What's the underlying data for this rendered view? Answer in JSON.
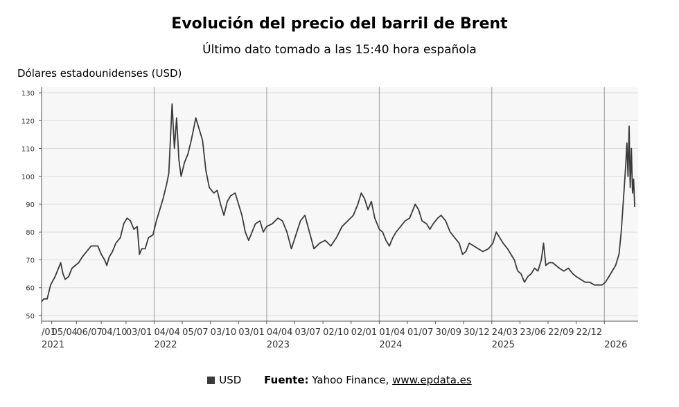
{
  "chart_data": {
    "type": "line",
    "title": "Evolución del precio del barril de Brent",
    "subtitle": "Último dato tomado a las 15:40 hora española",
    "ylabel": "Dólares estadounidenses (USD)",
    "ylim": [
      48,
      132
    ],
    "yticks": [
      50,
      60,
      70,
      80,
      90,
      100,
      110,
      120,
      130
    ],
    "xlim": [
      2021.0,
      2026.3
    ],
    "year_boundaries": [
      2022,
      2023,
      2024,
      2025,
      2026
    ],
    "grid": true,
    "legend_position": "bottom",
    "x_tick_labels": [
      {
        "x": 2021.0,
        "label": "/01",
        "year": "2021"
      },
      {
        "x": 2021.09,
        "label": "05/04",
        "year": ""
      },
      {
        "x": 2021.31,
        "label": "06/07",
        "year": ""
      },
      {
        "x": 2021.53,
        "label": "04/10",
        "year": ""
      },
      {
        "x": 2021.75,
        "label": "03/01",
        "year": ""
      },
      {
        "x": 2022.0,
        "label": "04/04",
        "year": "2022"
      },
      {
        "x": 2022.25,
        "label": "05/07",
        "year": ""
      },
      {
        "x": 2022.5,
        "label": "03/10",
        "year": ""
      },
      {
        "x": 2022.75,
        "label": "03/01",
        "year": ""
      },
      {
        "x": 2023.0,
        "label": "04/04",
        "year": "2023"
      },
      {
        "x": 2023.25,
        "label": "03/07",
        "year": ""
      },
      {
        "x": 2023.5,
        "label": "02/10",
        "year": ""
      },
      {
        "x": 2023.75,
        "label": "02/01",
        "year": ""
      },
      {
        "x": 2024.0,
        "label": "01/04",
        "year": "2024"
      },
      {
        "x": 2024.25,
        "label": "01/07",
        "year": ""
      },
      {
        "x": 2024.5,
        "label": "30/09",
        "year": ""
      },
      {
        "x": 2024.75,
        "label": "30/12",
        "year": ""
      },
      {
        "x": 2025.0,
        "label": "24/03",
        "year": "2025"
      },
      {
        "x": 2025.25,
        "label": "23/06",
        "year": ""
      },
      {
        "x": 2025.5,
        "label": "22/09",
        "year": ""
      },
      {
        "x": 2025.75,
        "label": "22/12",
        "year": ""
      },
      {
        "x": 2026.0,
        "label": "",
        "year": "2026"
      }
    ],
    "series": [
      {
        "name": "USD",
        "color": "#3a3a3a",
        "points": [
          [
            2021.0,
            55
          ],
          [
            2021.02,
            56
          ],
          [
            2021.05,
            56
          ],
          [
            2021.08,
            61
          ],
          [
            2021.12,
            64
          ],
          [
            2021.15,
            67
          ],
          [
            2021.17,
            69
          ],
          [
            2021.19,
            65
          ],
          [
            2021.21,
            63
          ],
          [
            2021.24,
            64
          ],
          [
            2021.27,
            67
          ],
          [
            2021.3,
            68
          ],
          [
            2021.33,
            69
          ],
          [
            2021.36,
            71
          ],
          [
            2021.4,
            73
          ],
          [
            2021.44,
            75
          ],
          [
            2021.48,
            75
          ],
          [
            2021.5,
            75
          ],
          [
            2021.53,
            72
          ],
          [
            2021.56,
            70
          ],
          [
            2021.58,
            68
          ],
          [
            2021.6,
            71
          ],
          [
            2021.63,
            73
          ],
          [
            2021.66,
            76
          ],
          [
            2021.7,
            78
          ],
          [
            2021.73,
            83
          ],
          [
            2021.76,
            85
          ],
          [
            2021.79,
            84
          ],
          [
            2021.82,
            81
          ],
          [
            2021.85,
            82
          ],
          [
            2021.87,
            72
          ],
          [
            2021.89,
            74
          ],
          [
            2021.92,
            74
          ],
          [
            2021.95,
            78
          ],
          [
            2021.99,
            79
          ],
          [
            2022.02,
            84
          ],
          [
            2022.05,
            88
          ],
          [
            2022.08,
            92
          ],
          [
            2022.11,
            97
          ],
          [
            2022.13,
            101
          ],
          [
            2022.16,
            126
          ],
          [
            2022.18,
            110
          ],
          [
            2022.2,
            121
          ],
          [
            2022.22,
            106
          ],
          [
            2022.24,
            100
          ],
          [
            2022.27,
            105
          ],
          [
            2022.3,
            108
          ],
          [
            2022.33,
            113
          ],
          [
            2022.37,
            121
          ],
          [
            2022.4,
            117
          ],
          [
            2022.43,
            113
          ],
          [
            2022.46,
            102
          ],
          [
            2022.49,
            96
          ],
          [
            2022.53,
            94
          ],
          [
            2022.56,
            95
          ],
          [
            2022.59,
            90
          ],
          [
            2022.62,
            86
          ],
          [
            2022.65,
            91
          ],
          [
            2022.68,
            93
          ],
          [
            2022.72,
            94
          ],
          [
            2022.75,
            90
          ],
          [
            2022.78,
            86
          ],
          [
            2022.81,
            80
          ],
          [
            2022.84,
            77
          ],
          [
            2022.87,
            80
          ],
          [
            2022.9,
            83
          ],
          [
            2022.94,
            84
          ],
          [
            2022.97,
            80
          ],
          [
            2023.0,
            82
          ],
          [
            2023.05,
            83
          ],
          [
            2023.1,
            85
          ],
          [
            2023.14,
            84
          ],
          [
            2023.18,
            80
          ],
          [
            2023.22,
            74
          ],
          [
            2023.26,
            79
          ],
          [
            2023.3,
            84
          ],
          [
            2023.34,
            86
          ],
          [
            2023.38,
            80
          ],
          [
            2023.42,
            74
          ],
          [
            2023.47,
            76
          ],
          [
            2023.52,
            77
          ],
          [
            2023.57,
            75
          ],
          [
            2023.62,
            78
          ],
          [
            2023.67,
            82
          ],
          [
            2023.72,
            84
          ],
          [
            2023.77,
            86
          ],
          [
            2023.81,
            90
          ],
          [
            2023.84,
            94
          ],
          [
            2023.87,
            92
          ],
          [
            2023.9,
            88
          ],
          [
            2023.93,
            91
          ],
          [
            2023.96,
            85
          ],
          [
            2024.0,
            81
          ],
          [
            2024.03,
            80
          ],
          [
            2024.06,
            77
          ],
          [
            2024.09,
            75
          ],
          [
            2024.12,
            78
          ],
          [
            2024.15,
            80
          ],
          [
            2024.19,
            82
          ],
          [
            2024.23,
            84
          ],
          [
            2024.27,
            85
          ],
          [
            2024.3,
            88
          ],
          [
            2024.32,
            90
          ],
          [
            2024.35,
            88
          ],
          [
            2024.38,
            84
          ],
          [
            2024.42,
            83
          ],
          [
            2024.45,
            81
          ],
          [
            2024.48,
            83
          ],
          [
            2024.52,
            85
          ],
          [
            2024.55,
            86
          ],
          [
            2024.59,
            84
          ],
          [
            2024.63,
            80
          ],
          [
            2024.67,
            78
          ],
          [
            2024.71,
            76
          ],
          [
            2024.74,
            72
          ],
          [
            2024.77,
            73
          ],
          [
            2024.8,
            76
          ],
          [
            2024.84,
            75
          ],
          [
            2024.88,
            74
          ],
          [
            2024.92,
            73
          ],
          [
            2024.97,
            74
          ],
          [
            2025.01,
            76
          ],
          [
            2025.04,
            80
          ],
          [
            2025.07,
            78
          ],
          [
            2025.1,
            76
          ],
          [
            2025.14,
            74
          ],
          [
            2025.17,
            72
          ],
          [
            2025.2,
            70
          ],
          [
            2025.23,
            66
          ],
          [
            2025.26,
            65
          ],
          [
            2025.29,
            62
          ],
          [
            2025.32,
            64
          ],
          [
            2025.35,
            65
          ],
          [
            2025.38,
            67
          ],
          [
            2025.41,
            66
          ],
          [
            2025.44,
            70
          ],
          [
            2025.46,
            76
          ],
          [
            2025.48,
            68
          ],
          [
            2025.51,
            69
          ],
          [
            2025.54,
            69
          ],
          [
            2025.57,
            68
          ],
          [
            2025.6,
            67
          ],
          [
            2025.64,
            66
          ],
          [
            2025.68,
            67
          ],
          [
            2025.72,
            65
          ],
          [
            2025.75,
            64
          ],
          [
            2025.79,
            63
          ],
          [
            2025.83,
            62
          ],
          [
            2025.87,
            62
          ],
          [
            2025.91,
            61
          ],
          [
            2025.94,
            61
          ],
          [
            2025.98,
            61
          ],
          [
            2026.01,
            62
          ],
          [
            2026.04,
            64
          ],
          [
            2026.07,
            66
          ],
          [
            2026.1,
            68
          ],
          [
            2026.13,
            72
          ],
          [
            2026.15,
            80
          ],
          [
            2026.17,
            92
          ],
          [
            2026.19,
            104
          ],
          [
            2026.2,
            112
          ],
          [
            2026.21,
            100
          ],
          [
            2026.22,
            118
          ],
          [
            2026.23,
            96
          ],
          [
            2026.24,
            110
          ],
          [
            2026.25,
            94
          ],
          [
            2026.26,
            99
          ],
          [
            2026.27,
            89
          ]
        ]
      }
    ]
  },
  "footer": {
    "legend_label": "USD",
    "source_label": "Fuente:",
    "source_text": "Yahoo Finance,",
    "source_link": "www.epdata.es"
  }
}
